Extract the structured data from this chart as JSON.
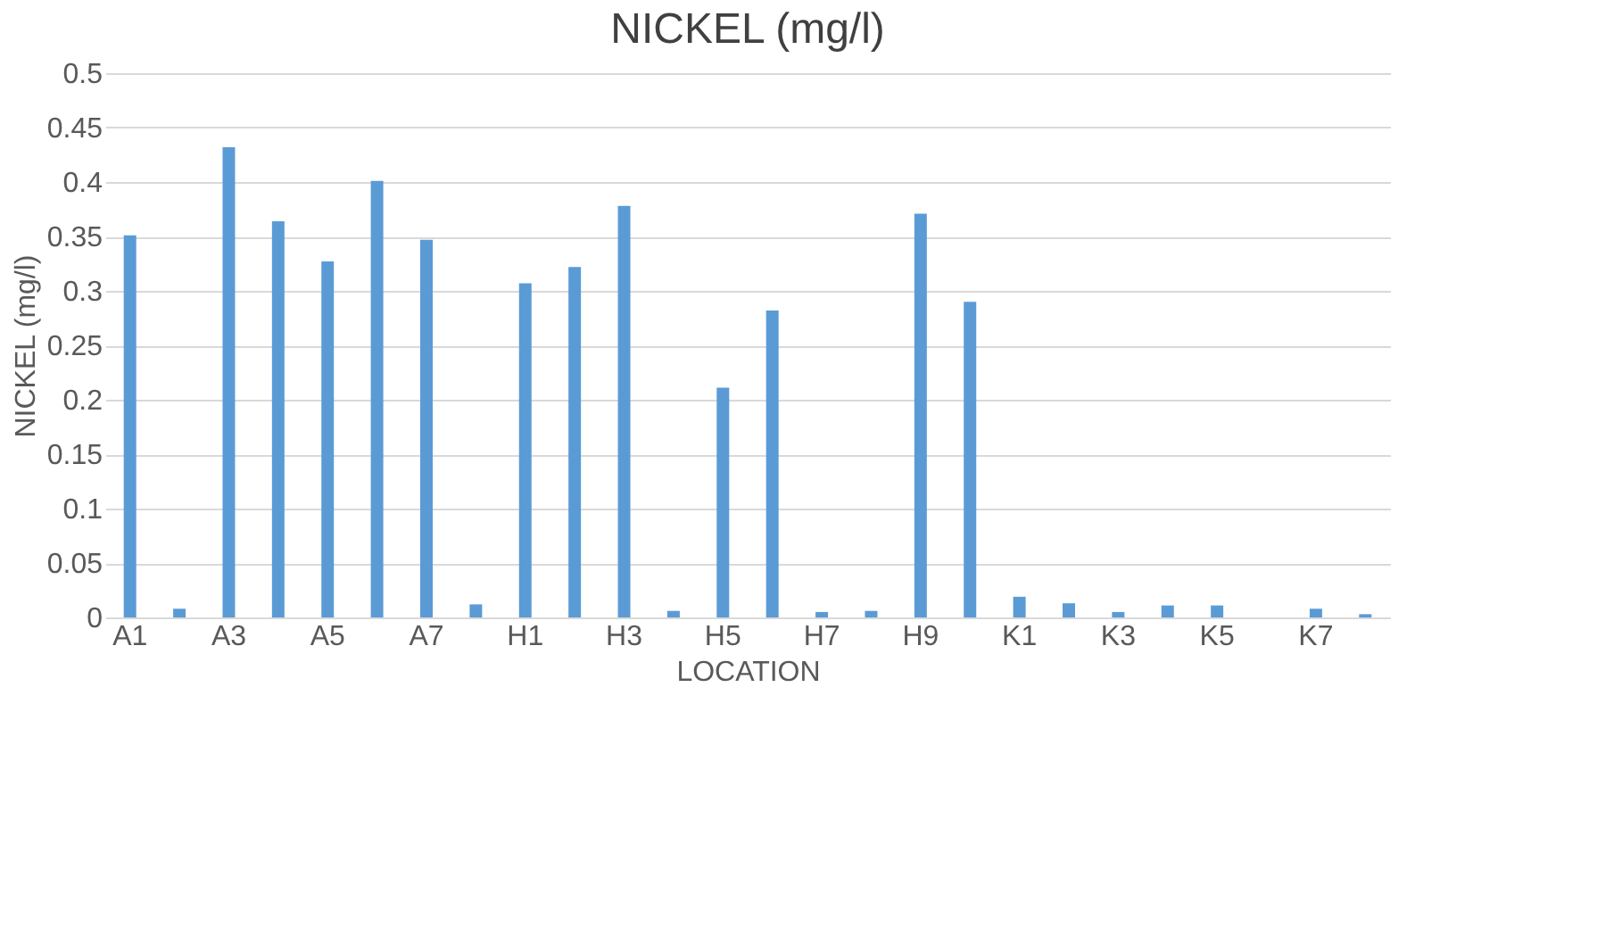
{
  "chart_data": {
    "type": "bar",
    "title": "NICKEL (mg/l)",
    "xlabel": "LOCATION",
    "ylabel": "NICKEL (mg/l)",
    "categories": [
      "A1",
      null,
      "A3",
      null,
      "A5",
      null,
      "A7",
      null,
      "H1",
      null,
      "H3",
      null,
      "H5",
      null,
      "H7",
      null,
      "H9",
      null,
      "K1",
      null,
      "K3",
      null,
      "K5",
      null,
      "K7",
      null
    ],
    "values": [
      0.351,
      0.008,
      0.432,
      0.364,
      0.327,
      0.401,
      0.347,
      0.012,
      0.307,
      0.322,
      0.378,
      0.006,
      0.211,
      0.282,
      0.005,
      0.006,
      0.371,
      0.29,
      0.019,
      0.013,
      0.005,
      0.011,
      0.011,
      0,
      0.008,
      0.003
    ],
    "color": "#5b9bd5",
    "ylim": [
      0,
      0.5
    ],
    "yticks": [
      0,
      0.05,
      0.1,
      0.15,
      0.2,
      0.25,
      0.3,
      0.35,
      0.4,
      0.45,
      0.5
    ],
    "grid": "y"
  }
}
